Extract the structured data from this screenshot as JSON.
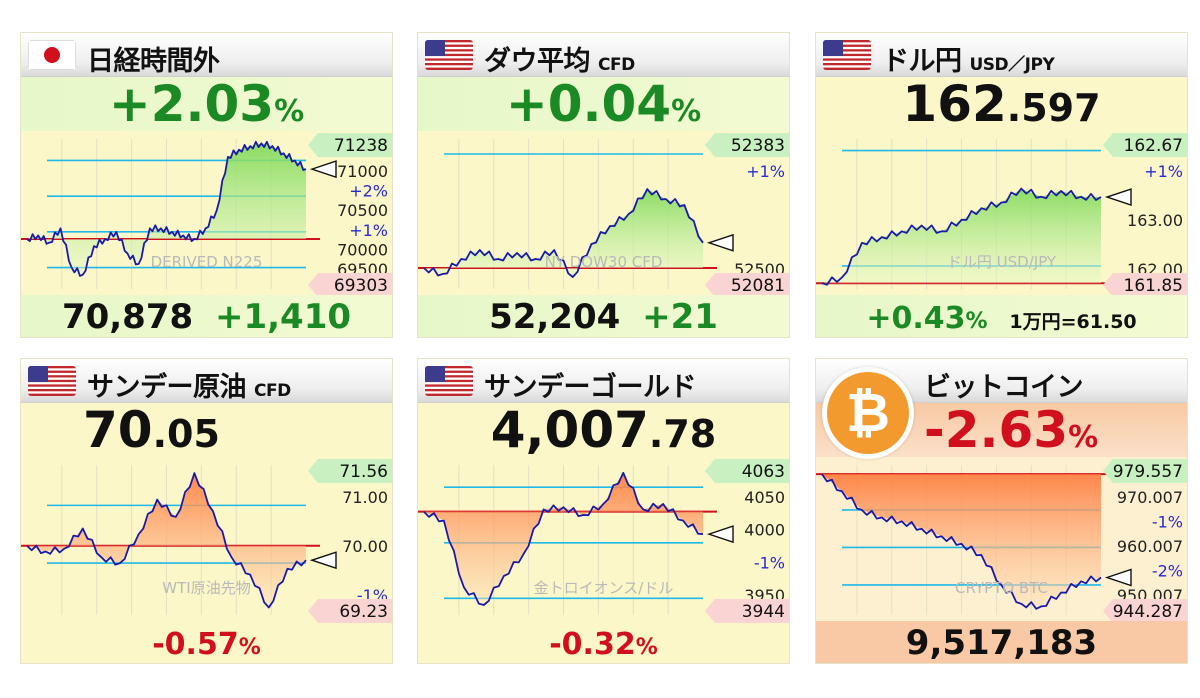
{
  "cards": {
    "nikkei": {
      "title": "日経時間外",
      "subtitle": "",
      "flag": "japan-flag-icon",
      "trend": "up",
      "hero_int": "+2.03",
      "hero_dec": "",
      "hero_unit": "%",
      "bottom_main": "70,878",
      "bottom_change": "+1,410",
      "bottom_extra": "",
      "watermark": "DERIVED N225",
      "tag_high": "71238",
      "tag_low": "69303",
      "side_labels": [
        "71000",
        "+2%",
        "70500",
        "+1%",
        "70000",
        "69500"
      ]
    },
    "dow": {
      "title": "ダウ平均",
      "subtitle": "CFD",
      "flag": "us-flag-icon",
      "trend": "up",
      "hero_int": "+0.04",
      "hero_dec": "",
      "hero_unit": "%",
      "bottom_main": "52,204",
      "bottom_change": "+21",
      "bottom_extra": "",
      "watermark": "NY DOW30 CFD",
      "tag_high": "52383",
      "tag_low": "52081",
      "side_labels": [
        "+1%",
        "52500"
      ]
    },
    "usdjpy": {
      "title": "ドル円",
      "subtitle": "USD／JPY",
      "flag": "us-flag-icon",
      "trend": "up",
      "hero_int": "162",
      "hero_dec": ".597",
      "hero_unit": "",
      "bottom_main": "+0.43",
      "bottom_unit": "%",
      "bottom_extra": "1万円=61.50",
      "watermark": "ドル円 USD/JPY",
      "tag_high": "162.67",
      "tag_low": "161.85",
      "side_labels": [
        "+1%",
        "163.00",
        "162.00"
      ]
    },
    "oil": {
      "title": "サンデー原油",
      "subtitle": "CFD",
      "flag": "us-flag-icon",
      "trend": "down",
      "hero_int": "70",
      "hero_dec": ".05",
      "hero_unit": "",
      "bottom_main": "-0.57",
      "bottom_unit": "%",
      "bottom_extra": "",
      "watermark": "WTI原油先物",
      "tag_high": "71.56",
      "tag_low": "69.23",
      "side_labels": [
        "71.00",
        "70.00",
        "-1%"
      ]
    },
    "gold": {
      "title": "サンデーゴールド",
      "subtitle": "",
      "flag": "us-flag-icon",
      "trend": "down",
      "hero_int": "4,007",
      "hero_dec": ".78",
      "hero_unit": "",
      "bottom_main": "-0.32",
      "bottom_unit": "%",
      "bottom_extra": "",
      "watermark": "金トロイオンス/ドル",
      "tag_high": "4063",
      "tag_low": "3944",
      "side_labels": [
        "4050",
        "4000",
        "-1%",
        "3950"
      ]
    },
    "btc": {
      "title": "ビットコイン",
      "subtitle": "",
      "flag": "bitcoin-icon",
      "trend": "down",
      "logo_glyph": "₿",
      "hero_int": "-2.63",
      "hero_dec": "",
      "hero_unit": "%",
      "bottom_main": "9,517,183",
      "bottom_extra": "",
      "watermark": "CRYPTO BTC",
      "tag_high": "979.557",
      "tag_low": "944.287",
      "side_labels": [
        "970.007",
        "-1%",
        "960.007",
        "-2%",
        "950.007"
      ]
    }
  },
  "chart_data": [
    {
      "type": "line",
      "series": [
        {
          "values": [
            69900,
            69950,
            69850,
            70050,
            69500,
            69400,
            69800,
            69900,
            70000,
            69700,
            69550,
            70050,
            70050,
            70000,
            69950,
            69900,
            70050,
            70300,
            71050,
            71150,
            71200,
            71238,
            71200,
            71100,
            71000,
            70878
          ]
        }
      ],
      "ylim": [
        69200,
        71300
      ],
      "tick_labels": [
        "71000",
        "70500",
        "70000",
        "69500"
      ]
    },
    {
      "type": "line",
      "series": [
        {
          "values": [
            52120,
            52100,
            52150,
            52180,
            52150,
            52170,
            52150,
            52180,
            52090,
            52200,
            52260,
            52300,
            52383,
            52350,
            52330,
            52204
          ]
        }
      ],
      "ylim": [
        52050,
        52550
      ],
      "tick_labels": [
        "52500"
      ]
    },
    {
      "type": "line",
      "series": [
        {
          "values": [
            161.85,
            161.9,
            162.2,
            162.25,
            162.3,
            162.35,
            162.3,
            162.4,
            162.5,
            162.55,
            162.67,
            162.6,
            162.65,
            162.6,
            162.597
          ]
        }
      ],
      "ylim": [
        161.8,
        163.1
      ],
      "tick_labels": [
        "163.00",
        "162.00"
      ]
    },
    {
      "type": "line",
      "series": [
        {
          "values": [
            70.3,
            70.2,
            70.25,
            70.6,
            70.1,
            70.0,
            70.5,
            71.1,
            70.8,
            71.56,
            70.9,
            70.1,
            69.8,
            69.23,
            69.9,
            70.05
          ]
        }
      ],
      "ylim": [
        69.1,
        71.7
      ],
      "tick_labels": [
        "71.00",
        "70.00"
      ]
    },
    {
      "type": "line",
      "series": [
        {
          "values": [
            4028,
            4020,
            3960,
            3944,
            3970,
            3990,
            4030,
            4032,
            4025,
            4035,
            4063,
            4030,
            4035,
            4020,
            4007.78
          ]
        }
      ],
      "ylim": [
        3935,
        4070
      ],
      "tick_labels": [
        "4050",
        "4000",
        "3950"
      ]
    },
    {
      "type": "line",
      "series": [
        {
          "values": [
            979.557,
            975,
            970,
            968,
            967,
            965,
            963,
            961,
            958,
            950,
            945,
            944.287,
            948,
            951,
            952
          ]
        }
      ],
      "ylim": [
        942,
        982
      ],
      "tick_labels": [
        "970.007",
        "960.007",
        "950.007"
      ]
    }
  ]
}
